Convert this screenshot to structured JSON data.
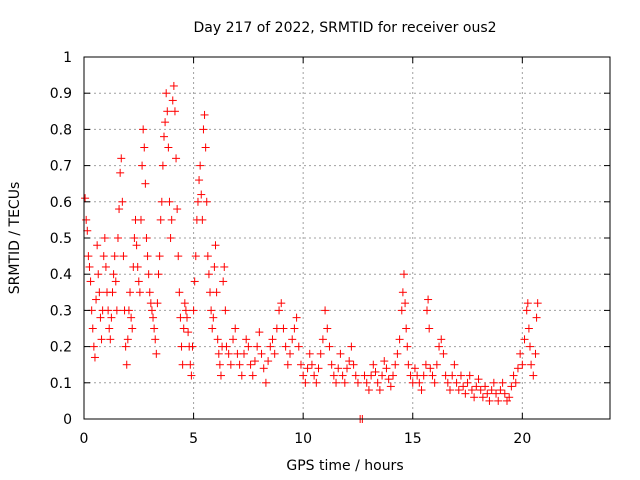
{
  "chart_data": {
    "type": "scatter",
    "title": "Day 217 of 2022, SRMTID for receiver ous2",
    "xlabel": "GPS time / hours",
    "ylabel": "SRMTID / TECUs",
    "xlim": [
      0,
      24
    ],
    "ylim": [
      0,
      1
    ],
    "xticks": [
      0,
      5,
      10,
      15,
      20
    ],
    "xtick_labels": [
      "0",
      "5",
      "10",
      "15",
      "20"
    ],
    "yticks": [
      0,
      0.1,
      0.2,
      0.3,
      0.4,
      0.5,
      0.6,
      0.7,
      0.8,
      0.9,
      1
    ],
    "ytick_labels": [
      "0",
      "0.1",
      "0.2",
      "0.3",
      "0.4",
      "0.5",
      "0.6",
      "0.7",
      "0.8",
      "0.9",
      "1"
    ],
    "grid": true,
    "marker": "+",
    "color": "#ff0000",
    "series": [
      {
        "name": "SRMTID",
        "points": [
          [
            0.05,
            0.61
          ],
          [
            0.1,
            0.55
          ],
          [
            0.15,
            0.52
          ],
          [
            0.2,
            0.45
          ],
          [
            0.25,
            0.42
          ],
          [
            0.3,
            0.38
          ],
          [
            0.35,
            0.3
          ],
          [
            0.4,
            0.25
          ],
          [
            0.45,
            0.2
          ],
          [
            0.5,
            0.17
          ],
          [
            0.55,
            0.33
          ],
          [
            0.6,
            0.48
          ],
          [
            0.65,
            0.4
          ],
          [
            0.7,
            0.35
          ],
          [
            0.75,
            0.28
          ],
          [
            0.8,
            0.22
          ],
          [
            0.85,
            0.3
          ],
          [
            0.9,
            0.45
          ],
          [
            0.95,
            0.5
          ],
          [
            1.0,
            0.42
          ],
          [
            1.05,
            0.35
          ],
          [
            1.1,
            0.3
          ],
          [
            1.15,
            0.25
          ],
          [
            1.2,
            0.22
          ],
          [
            1.25,
            0.28
          ],
          [
            1.3,
            0.35
          ],
          [
            1.35,
            0.4
          ],
          [
            1.4,
            0.45
          ],
          [
            1.45,
            0.38
          ],
          [
            1.5,
            0.3
          ],
          [
            1.55,
            0.5
          ],
          [
            1.6,
            0.58
          ],
          [
            1.65,
            0.68
          ],
          [
            1.7,
            0.72
          ],
          [
            1.75,
            0.6
          ],
          [
            1.8,
            0.45
          ],
          [
            1.85,
            0.3
          ],
          [
            1.9,
            0.2
          ],
          [
            1.95,
            0.15
          ],
          [
            2.0,
            0.22
          ],
          [
            2.05,
            0.3
          ],
          [
            2.1,
            0.35
          ],
          [
            2.15,
            0.28
          ],
          [
            2.2,
            0.25
          ],
          [
            2.25,
            0.42
          ],
          [
            2.3,
            0.5
          ],
          [
            2.35,
            0.55
          ],
          [
            2.4,
            0.48
          ],
          [
            2.45,
            0.42
          ],
          [
            2.5,
            0.38
          ],
          [
            2.55,
            0.35
          ],
          [
            2.6,
            0.55
          ],
          [
            2.65,
            0.7
          ],
          [
            2.7,
            0.8
          ],
          [
            2.75,
            0.75
          ],
          [
            2.8,
            0.65
          ],
          [
            2.85,
            0.5
          ],
          [
            2.9,
            0.45
          ],
          [
            2.95,
            0.4
          ],
          [
            3.0,
            0.35
          ],
          [
            3.05,
            0.32
          ],
          [
            3.1,
            0.3
          ],
          [
            3.15,
            0.28
          ],
          [
            3.2,
            0.25
          ],
          [
            3.25,
            0.22
          ],
          [
            3.3,
            0.18
          ],
          [
            3.35,
            0.32
          ],
          [
            3.4,
            0.4
          ],
          [
            3.45,
            0.45
          ],
          [
            3.5,
            0.55
          ],
          [
            3.55,
            0.6
          ],
          [
            3.6,
            0.7
          ],
          [
            3.65,
            0.78
          ],
          [
            3.7,
            0.82
          ],
          [
            3.75,
            0.9
          ],
          [
            3.8,
            0.85
          ],
          [
            3.85,
            0.75
          ],
          [
            3.9,
            0.6
          ],
          [
            3.95,
            0.5
          ],
          [
            4.0,
            0.55
          ],
          [
            4.05,
            0.88
          ],
          [
            4.1,
            0.92
          ],
          [
            4.15,
            0.85
          ],
          [
            4.2,
            0.72
          ],
          [
            4.25,
            0.58
          ],
          [
            4.3,
            0.45
          ],
          [
            4.35,
            0.35
          ],
          [
            4.4,
            0.28
          ],
          [
            4.45,
            0.2
          ],
          [
            4.5,
            0.15
          ],
          [
            4.55,
            0.25
          ],
          [
            4.6,
            0.32
          ],
          [
            4.65,
            0.3
          ],
          [
            4.7,
            0.28
          ],
          [
            4.75,
            0.24
          ],
          [
            4.8,
            0.2
          ],
          [
            4.85,
            0.15
          ],
          [
            4.9,
            0.12
          ],
          [
            4.95,
            0.2
          ],
          [
            5.0,
            0.3
          ],
          [
            5.05,
            0.38
          ],
          [
            5.1,
            0.45
          ],
          [
            5.15,
            0.55
          ],
          [
            5.2,
            0.6
          ],
          [
            5.25,
            0.66
          ],
          [
            5.3,
            0.7
          ],
          [
            5.35,
            0.62
          ],
          [
            5.4,
            0.55
          ],
          [
            5.45,
            0.8
          ],
          [
            5.5,
            0.84
          ],
          [
            5.55,
            0.75
          ],
          [
            5.6,
            0.6
          ],
          [
            5.65,
            0.45
          ],
          [
            5.7,
            0.4
          ],
          [
            5.75,
            0.35
          ],
          [
            5.8,
            0.3
          ],
          [
            5.85,
            0.25
          ],
          [
            5.9,
            0.28
          ],
          [
            5.95,
            0.42
          ],
          [
            6.0,
            0.48
          ],
          [
            6.05,
            0.35
          ],
          [
            6.1,
            0.22
          ],
          [
            6.15,
            0.18
          ],
          [
            6.2,
            0.15
          ],
          [
            6.25,
            0.12
          ],
          [
            6.3,
            0.2
          ],
          [
            6.35,
            0.38
          ],
          [
            6.4,
            0.42
          ],
          [
            6.45,
            0.3
          ],
          [
            6.5,
            0.2
          ],
          [
            6.6,
            0.18
          ],
          [
            6.7,
            0.15
          ],
          [
            6.8,
            0.22
          ],
          [
            6.9,
            0.25
          ],
          [
            7.0,
            0.18
          ],
          [
            7.1,
            0.15
          ],
          [
            7.2,
            0.12
          ],
          [
            7.3,
            0.18
          ],
          [
            7.4,
            0.22
          ],
          [
            7.5,
            0.2
          ],
          [
            7.6,
            0.15
          ],
          [
            7.7,
            0.12
          ],
          [
            7.8,
            0.16
          ],
          [
            7.9,
            0.2
          ],
          [
            8.0,
            0.24
          ],
          [
            8.1,
            0.18
          ],
          [
            8.2,
            0.14
          ],
          [
            8.3,
            0.1
          ],
          [
            8.4,
            0.16
          ],
          [
            8.5,
            0.2
          ],
          [
            8.6,
            0.22
          ],
          [
            8.7,
            0.18
          ],
          [
            8.8,
            0.25
          ],
          [
            8.9,
            0.3
          ],
          [
            9.0,
            0.32
          ],
          [
            9.1,
            0.25
          ],
          [
            9.2,
            0.2
          ],
          [
            9.3,
            0.15
          ],
          [
            9.4,
            0.18
          ],
          [
            9.5,
            0.22
          ],
          [
            9.6,
            0.25
          ],
          [
            9.7,
            0.28
          ],
          [
            9.8,
            0.2
          ],
          [
            9.9,
            0.15
          ],
          [
            10.0,
            0.12
          ],
          [
            10.1,
            0.1
          ],
          [
            10.2,
            0.14
          ],
          [
            10.3,
            0.18
          ],
          [
            10.4,
            0.15
          ],
          [
            10.5,
            0.12
          ],
          [
            10.6,
            0.1
          ],
          [
            10.7,
            0.14
          ],
          [
            10.8,
            0.18
          ],
          [
            10.9,
            0.22
          ],
          [
            11.0,
            0.3
          ],
          [
            11.1,
            0.25
          ],
          [
            11.2,
            0.2
          ],
          [
            11.3,
            0.15
          ],
          [
            11.4,
            0.12
          ],
          [
            11.5,
            0.1
          ],
          [
            11.6,
            0.14
          ],
          [
            11.7,
            0.18
          ],
          [
            11.8,
            0.12
          ],
          [
            11.9,
            0.1
          ],
          [
            12.0,
            0.14
          ],
          [
            12.1,
            0.16
          ],
          [
            12.2,
            0.2
          ],
          [
            12.3,
            0.15
          ],
          [
            12.4,
            0.12
          ],
          [
            12.5,
            0.1
          ],
          [
            12.6,
            0.0
          ],
          [
            12.7,
            0.0
          ],
          [
            12.8,
            0.12
          ],
          [
            12.9,
            0.1
          ],
          [
            13.0,
            0.08
          ],
          [
            13.1,
            0.12
          ],
          [
            13.2,
            0.15
          ],
          [
            13.3,
            0.13
          ],
          [
            13.4,
            0.1
          ],
          [
            13.5,
            0.08
          ],
          [
            13.6,
            0.12
          ],
          [
            13.7,
            0.16
          ],
          [
            13.8,
            0.14
          ],
          [
            13.9,
            0.11
          ],
          [
            14.0,
            0.09
          ],
          [
            14.1,
            0.12
          ],
          [
            14.2,
            0.15
          ],
          [
            14.3,
            0.18
          ],
          [
            14.4,
            0.22
          ],
          [
            14.5,
            0.3
          ],
          [
            14.55,
            0.35
          ],
          [
            14.6,
            0.4
          ],
          [
            14.65,
            0.32
          ],
          [
            14.7,
            0.25
          ],
          [
            14.75,
            0.2
          ],
          [
            14.8,
            0.15
          ],
          [
            14.9,
            0.12
          ],
          [
            15.0,
            0.1
          ],
          [
            15.1,
            0.14
          ],
          [
            15.2,
            0.12
          ],
          [
            15.3,
            0.1
          ],
          [
            15.4,
            0.08
          ],
          [
            15.5,
            0.12
          ],
          [
            15.6,
            0.15
          ],
          [
            15.65,
            0.3
          ],
          [
            15.7,
            0.33
          ],
          [
            15.75,
            0.25
          ],
          [
            15.8,
            0.14
          ],
          [
            15.9,
            0.12
          ],
          [
            16.0,
            0.1
          ],
          [
            16.1,
            0.15
          ],
          [
            16.2,
            0.2
          ],
          [
            16.3,
            0.22
          ],
          [
            16.4,
            0.18
          ],
          [
            16.5,
            0.12
          ],
          [
            16.6,
            0.1
          ],
          [
            16.7,
            0.08
          ],
          [
            16.8,
            0.12
          ],
          [
            16.9,
            0.15
          ],
          [
            17.0,
            0.1
          ],
          [
            17.1,
            0.08
          ],
          [
            17.2,
            0.12
          ],
          [
            17.3,
            0.09
          ],
          [
            17.4,
            0.07
          ],
          [
            17.5,
            0.1
          ],
          [
            17.6,
            0.12
          ],
          [
            17.7,
            0.08
          ],
          [
            17.8,
            0.06
          ],
          [
            17.9,
            0.09
          ],
          [
            18.0,
            0.11
          ],
          [
            18.1,
            0.08
          ],
          [
            18.2,
            0.06
          ],
          [
            18.3,
            0.09
          ],
          [
            18.4,
            0.07
          ],
          [
            18.5,
            0.05
          ],
          [
            18.6,
            0.08
          ],
          [
            18.7,
            0.1
          ],
          [
            18.8,
            0.07
          ],
          [
            18.9,
            0.05
          ],
          [
            19.0,
            0.08
          ],
          [
            19.1,
            0.1
          ],
          [
            19.2,
            0.07
          ],
          [
            19.3,
            0.05
          ],
          [
            19.4,
            0.06
          ],
          [
            19.5,
            0.09
          ],
          [
            19.6,
            0.12
          ],
          [
            19.7,
            0.1
          ],
          [
            19.8,
            0.14
          ],
          [
            19.9,
            0.18
          ],
          [
            20.0,
            0.15
          ],
          [
            20.1,
            0.22
          ],
          [
            20.2,
            0.3
          ],
          [
            20.25,
            0.32
          ],
          [
            20.3,
            0.25
          ],
          [
            20.35,
            0.2
          ],
          [
            20.4,
            0.15
          ],
          [
            20.5,
            0.12
          ],
          [
            20.6,
            0.18
          ],
          [
            20.65,
            0.28
          ],
          [
            20.7,
            0.32
          ]
        ]
      }
    ]
  }
}
